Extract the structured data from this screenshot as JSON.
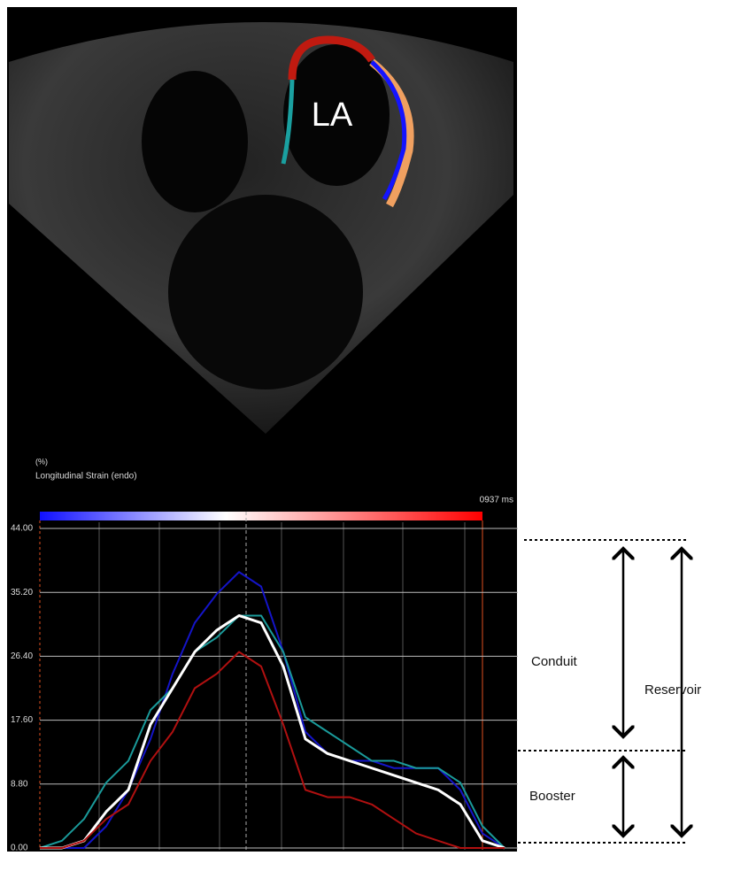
{
  "image": {
    "label": "LA"
  },
  "chart_data": {
    "type": "line",
    "subtitle": "Longitudinal Strain (endo)",
    "y_label": "(%)",
    "time_label": "0937 ms",
    "categories": [
      null,
      null,
      null,
      null,
      null,
      null,
      null,
      null,
      null,
      null,
      null,
      null,
      null,
      null,
      null,
      null,
      null,
      null,
      null,
      null,
      null,
      null
    ],
    "series": [
      {
        "name": null,
        "color": "#1414c8",
        "values": [
          0,
          0,
          0,
          3,
          8,
          15,
          24,
          31,
          35,
          38,
          36,
          27,
          16,
          13,
          12,
          12,
          11,
          11,
          11,
          8,
          2,
          0
        ]
      },
      {
        "name": null,
        "color": "#1a9a9a",
        "values": [
          0,
          1,
          4,
          9,
          12,
          19,
          22,
          27,
          29,
          32,
          32,
          27,
          18,
          16,
          14,
          12,
          12,
          11,
          11,
          9,
          3,
          0
        ]
      },
      {
        "name": null,
        "color": "#ffffff",
        "values": [
          0,
          0,
          1,
          5,
          8,
          17,
          22,
          27,
          30,
          32,
          31,
          25,
          15,
          13,
          12,
          11,
          10,
          9,
          8,
          6,
          1,
          0
        ]
      },
      {
        "name": null,
        "color": "#b01010",
        "values": [
          0,
          0,
          1,
          4,
          6,
          12,
          16,
          22,
          24,
          27,
          25,
          17,
          8,
          7,
          7,
          6,
          4,
          2,
          1,
          0,
          0,
          0
        ]
      }
    ],
    "ylim": [
      0,
      44
    ],
    "yticks": [
      {
        "value": 0,
        "label": "0.00"
      },
      {
        "value": 8.8,
        "label": "8.80"
      },
      {
        "value": 17.6,
        "label": "17.60"
      },
      {
        "value": 26.4,
        "label": "26.40"
      },
      {
        "value": 35.2,
        "label": "35.20"
      },
      {
        "value": 44,
        "label": "44.00"
      }
    ],
    "grid": true,
    "annotations": [
      "Conduit",
      "Reservoir",
      "Booster"
    ]
  }
}
